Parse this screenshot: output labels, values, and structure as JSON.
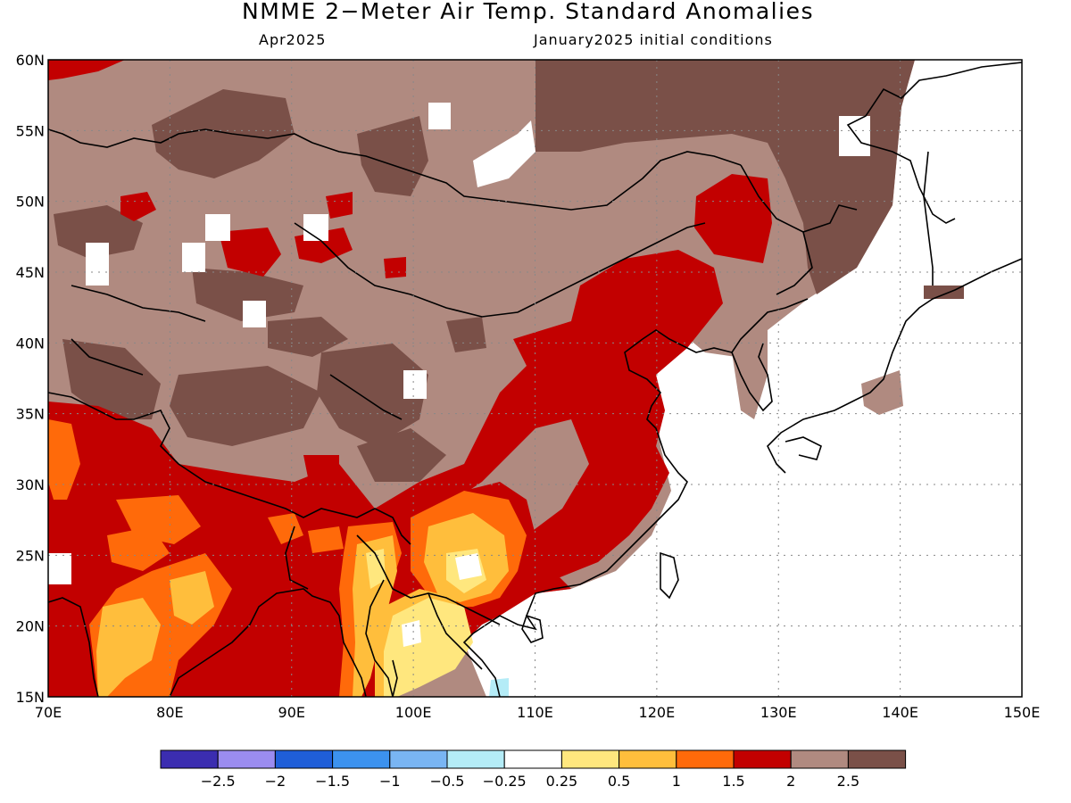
{
  "title": "NMME 2−Meter Air Temp. Standard Anomalies",
  "subtitle_left": "Apr2025",
  "subtitle_right": "January2025 initial conditions",
  "map": {
    "lon_range": [
      70,
      150
    ],
    "lat_range": [
      15,
      60
    ],
    "lon_ticks": [
      "70E",
      "80E",
      "90E",
      "100E",
      "110E",
      "120E",
      "130E",
      "140E",
      "150E"
    ],
    "lat_ticks": [
      "60N",
      "55N",
      "50N",
      "45N",
      "40N",
      "35N",
      "30N",
      "25N",
      "20N",
      "15N"
    ],
    "grid": "dotted"
  },
  "colorbar": {
    "colors": [
      "#3b2db0",
      "#9b8cf0",
      "#1f5ed8",
      "#3c92ef",
      "#79b5f3",
      "#b4ecf7",
      "#ffffff",
      "#ffe77e",
      "#ffbe3c",
      "#ff6a0a",
      "#c20000",
      "#b08a80",
      "#7a5048"
    ],
    "labels": [
      "−2.5",
      "−2",
      "−1.5",
      "−1",
      "−0.5",
      "−0.25",
      "0.25",
      "0.5",
      "1",
      "1.5",
      "2",
      "2.5"
    ]
  }
}
